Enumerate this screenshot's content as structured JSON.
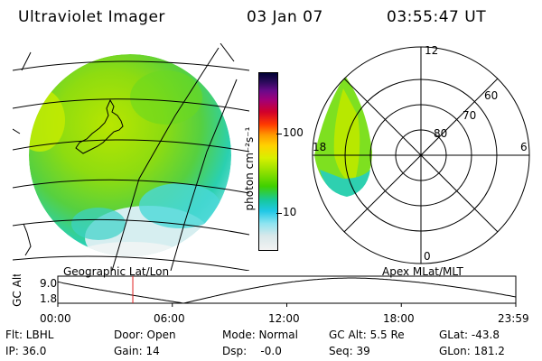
{
  "header": {
    "instrument": "Ultraviolet Imager",
    "date": "03 Jan 07",
    "time": "03:55:47 UT"
  },
  "colorbar": {
    "label": "photon cm⁻²s⁻¹",
    "ticks": [
      "100",
      "10"
    ],
    "colors": [
      "#000033",
      "#2b0a5a",
      "#6a0a8a",
      "#a0007a",
      "#d2002a",
      "#ff3a00",
      "#ff9a00",
      "#ffd200",
      "#d8f000",
      "#8ee000",
      "#3fd000",
      "#16c8a0",
      "#20c8e6",
      "#8ee4f0",
      "#d8e8ea",
      "#f2f2f2"
    ]
  },
  "geo_panel": {
    "label": "Geographic Lat/Lon"
  },
  "polar_panel": {
    "label": "Apex MLat/MLT",
    "mlt_labels": {
      "top": "12",
      "left": "18",
      "right": "6",
      "bottom": "0"
    },
    "mlat_labels": [
      "60",
      "70",
      "80"
    ]
  },
  "altitude_plot": {
    "ylabel": "GC Alt",
    "yticks": [
      "9.0",
      "1.8"
    ],
    "xticks": [
      "00:00",
      "06:00",
      "12:00",
      "18:00",
      "23:59"
    ],
    "current_time_hours": 3.93
  },
  "info": {
    "row1": [
      "Flt: LBHL",
      "Door: Open",
      "Mode: Normal",
      "GC Alt: 5.5 Re",
      "GLat: -43.8"
    ],
    "row2": [
      "IP: 36.0",
      "Gain: 14",
      "Dsp:    -0.0",
      "Seq: 39",
      "GLon: 181.2"
    ]
  }
}
